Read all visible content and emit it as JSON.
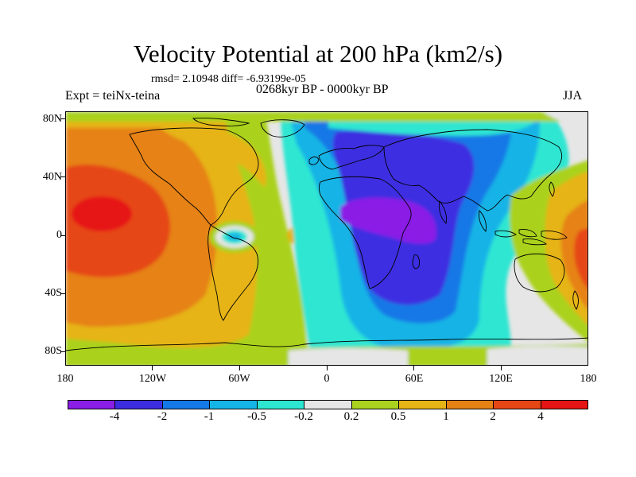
{
  "title": "Velocity Potential at 200 hPa (km2/s)",
  "stats": "rmsd= 2.10948 diff= -6.93199e-05",
  "experiment": "Expt = teiNx-teina",
  "period": "0268kyr BP - 0000kyr BP",
  "season": "JJA",
  "lat_labels": [
    "80N",
    "40N",
    "0",
    "40S",
    "80S"
  ],
  "lon_labels": [
    "180",
    "120W",
    "60W",
    "0",
    "60E",
    "120E",
    "180"
  ],
  "colorbar": {
    "labels": [
      "-4",
      "-2",
      "-1",
      "-0.5",
      "-0.2",
      "0.2",
      "0.5",
      "1",
      "2",
      "4"
    ],
    "colors": [
      "#8a1ee6",
      "#3c2de1",
      "#1478e6",
      "#14b4e6",
      "#2de6d2",
      "#e6e6e6",
      "#aad21e",
      "#e6b414",
      "#e68214",
      "#e64614",
      "#e61414"
    ]
  },
  "icons": [
    "world-map-coastlines"
  ]
}
